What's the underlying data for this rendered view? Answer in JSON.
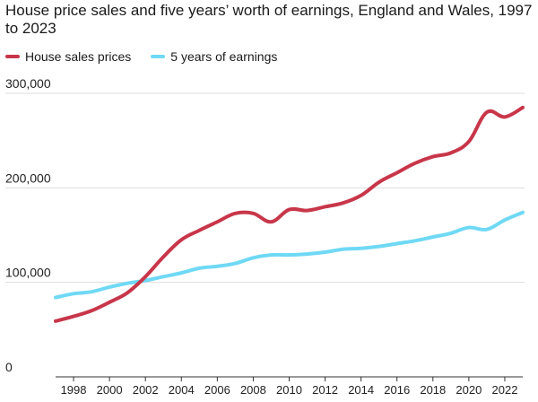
{
  "chart_data": {
    "type": "line",
    "title": "House price sales and five years’ worth of earnings, England and Wales, 1997 to 2023",
    "xlabel": "",
    "ylabel": "",
    "xlim": [
      1997,
      2023
    ],
    "ylim": [
      0,
      300000
    ],
    "yticks": [
      0,
      100000,
      200000,
      300000
    ],
    "ytick_labels": [
      "0",
      "100,000",
      "200,000",
      "300,000"
    ],
    "xticks": [
      1998,
      2000,
      2002,
      2004,
      2006,
      2008,
      2010,
      2012,
      2014,
      2016,
      2018,
      2020,
      2022
    ],
    "xtick_labels": [
      "1998",
      "2000",
      "2002",
      "2004",
      "2006",
      "2008",
      "2010",
      "2012",
      "2014",
      "2016",
      "2018",
      "2020",
      "2022"
    ],
    "grid": "horizontal",
    "legend_position": "top-left",
    "series": [
      {
        "name": "House sales prices",
        "color": "#c8364a",
        "x": [
          1997,
          1998,
          1999,
          2000,
          2001,
          2002,
          2003,
          2004,
          2005,
          2006,
          2007,
          2008,
          2009,
          2010,
          2011,
          2012,
          2013,
          2014,
          2015,
          2016,
          2017,
          2018,
          2019,
          2020,
          2021,
          2022,
          2023
        ],
        "values": [
          59000,
          64000,
          70000,
          79000,
          89000,
          106000,
          127000,
          145000,
          155000,
          164000,
          173000,
          173000,
          164000,
          177000,
          176000,
          180000,
          184000,
          192000,
          206000,
          216000,
          226000,
          233000,
          237000,
          249000,
          280000,
          275000,
          285000
        ]
      },
      {
        "name": "5 years of earnings",
        "color": "#6fd9f5",
        "x": [
          1997,
          1998,
          1999,
          2000,
          2001,
          2002,
          2003,
          2004,
          2005,
          2006,
          2007,
          2008,
          2009,
          2010,
          2011,
          2012,
          2013,
          2014,
          2015,
          2016,
          2017,
          2018,
          2019,
          2020,
          2021,
          2022,
          2023
        ],
        "values": [
          84000,
          88000,
          90000,
          95000,
          99000,
          102000,
          106000,
          110000,
          115000,
          117000,
          120000,
          126000,
          129000,
          129000,
          130000,
          132000,
          135000,
          136000,
          138000,
          141000,
          144000,
          148000,
          152000,
          158000,
          156000,
          166000,
          174000
        ]
      }
    ]
  }
}
